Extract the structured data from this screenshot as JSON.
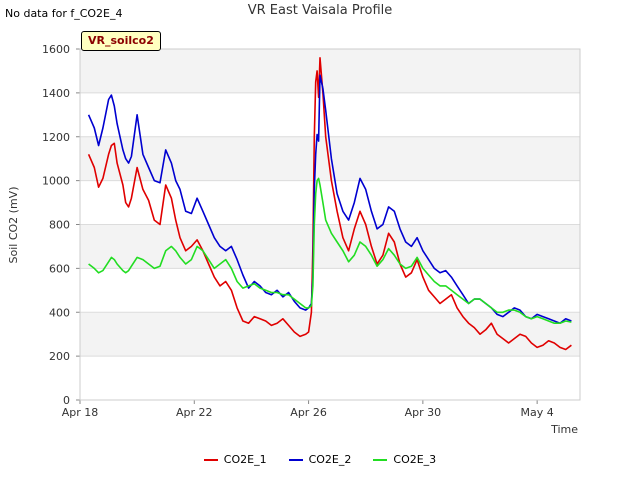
{
  "header": {
    "nodata_text": "No data for f_CO2E_4",
    "title": "VR East Vaisala Profile",
    "site_label": "VR_soilco2"
  },
  "colors": {
    "plot_background": "#f3f3f3",
    "grid": "#dcdcdc",
    "CO2E_1": "#e00000",
    "CO2E_2": "#0000d0",
    "CO2E_3": "#22dd22"
  },
  "chart_data": {
    "type": "line",
    "title": "VR East Vaisala Profile",
    "xlabel": "Time",
    "ylabel": "Soil CO2 (mV)",
    "ylim": [
      0,
      1600
    ],
    "xlim_days": [
      0,
      17.5
    ],
    "y_ticks": [
      0,
      200,
      400,
      600,
      800,
      1000,
      1200,
      1400,
      1600
    ],
    "x_ticks": [
      {
        "day": 0,
        "label": "Apr 18"
      },
      {
        "day": 4,
        "label": "Apr 22"
      },
      {
        "day": 8,
        "label": "Apr 26"
      },
      {
        "day": 12,
        "label": "Apr 30"
      },
      {
        "day": 16,
        "label": "May 4"
      }
    ],
    "legend_position": "bottom",
    "series": [
      {
        "name": "CO2E_1",
        "color": "#e00000",
        "x": [
          0.3,
          0.5,
          0.65,
          0.8,
          1.0,
          1.1,
          1.2,
          1.3,
          1.5,
          1.6,
          1.7,
          1.8,
          2.0,
          2.2,
          2.4,
          2.6,
          2.8,
          3.0,
          3.2,
          3.35,
          3.5,
          3.7,
          3.9,
          4.1,
          4.3,
          4.5,
          4.7,
          4.9,
          5.1,
          5.3,
          5.5,
          5.7,
          5.9,
          6.1,
          6.3,
          6.5,
          6.7,
          6.9,
          7.1,
          7.3,
          7.5,
          7.7,
          7.9,
          8.0,
          8.1,
          8.15,
          8.2,
          8.25,
          8.3,
          8.35,
          8.4,
          8.5,
          8.6,
          8.8,
          9.0,
          9.2,
          9.4,
          9.6,
          9.8,
          10.0,
          10.2,
          10.4,
          10.6,
          10.8,
          11.0,
          11.2,
          11.4,
          11.6,
          11.8,
          12.0,
          12.2,
          12.4,
          12.6,
          12.8,
          13.0,
          13.2,
          13.4,
          13.6,
          13.8,
          14.0,
          14.2,
          14.4,
          14.6,
          14.8,
          15.0,
          15.2,
          15.4,
          15.6,
          15.8,
          16.0,
          16.2,
          16.4,
          16.6,
          16.8,
          17.0,
          17.2
        ],
        "values": [
          1120,
          1060,
          970,
          1010,
          1120,
          1160,
          1170,
          1080,
          980,
          900,
          880,
          920,
          1060,
          960,
          910,
          820,
          800,
          980,
          920,
          820,
          740,
          680,
          700,
          730,
          680,
          620,
          560,
          520,
          540,
          500,
          420,
          360,
          350,
          380,
          370,
          360,
          340,
          350,
          370,
          340,
          310,
          290,
          300,
          310,
          400,
          700,
          1200,
          1450,
          1500,
          1380,
          1560,
          1400,
          1200,
          1000,
          860,
          740,
          680,
          780,
          860,
          800,
          700,
          620,
          660,
          760,
          720,
          620,
          560,
          580,
          640,
          560,
          500,
          470,
          440,
          460,
          480,
          420,
          380,
          350,
          330,
          300,
          320,
          350,
          300,
          280,
          260,
          280,
          300,
          290,
          260,
          240,
          250,
          270,
          260,
          240,
          230,
          250
        ]
      },
      {
        "name": "CO2E_2",
        "color": "#0000d0",
        "x": [
          0.3,
          0.5,
          0.65,
          0.8,
          1.0,
          1.1,
          1.2,
          1.3,
          1.5,
          1.6,
          1.7,
          1.8,
          2.0,
          2.2,
          2.4,
          2.6,
          2.8,
          3.0,
          3.2,
          3.35,
          3.5,
          3.7,
          3.9,
          4.1,
          4.3,
          4.5,
          4.7,
          4.9,
          5.1,
          5.3,
          5.5,
          5.7,
          5.9,
          6.1,
          6.3,
          6.5,
          6.7,
          6.9,
          7.1,
          7.3,
          7.5,
          7.7,
          7.9,
          8.0,
          8.1,
          8.15,
          8.2,
          8.25,
          8.3,
          8.35,
          8.4,
          8.5,
          8.6,
          8.8,
          9.0,
          9.2,
          9.4,
          9.6,
          9.8,
          10.0,
          10.2,
          10.4,
          10.6,
          10.8,
          11.0,
          11.2,
          11.4,
          11.6,
          11.8,
          12.0,
          12.2,
          12.4,
          12.6,
          12.8,
          13.0,
          13.2,
          13.4,
          13.6,
          13.8,
          14.0,
          14.2,
          14.4,
          14.6,
          14.8,
          15.0,
          15.2,
          15.4,
          15.6,
          15.8,
          16.0,
          16.2,
          16.4,
          16.6,
          16.8,
          17.0,
          17.2
        ],
        "values": [
          1300,
          1240,
          1160,
          1240,
          1370,
          1390,
          1340,
          1260,
          1140,
          1100,
          1080,
          1110,
          1300,
          1120,
          1060,
          1000,
          990,
          1140,
          1080,
          1000,
          960,
          860,
          850,
          920,
          860,
          800,
          740,
          700,
          680,
          700,
          640,
          570,
          510,
          540,
          520,
          490,
          480,
          500,
          470,
          490,
          450,
          420,
          410,
          420,
          440,
          560,
          960,
          1120,
          1210,
          1180,
          1480,
          1420,
          1320,
          1100,
          940,
          860,
          820,
          900,
          1010,
          960,
          860,
          780,
          800,
          880,
          860,
          780,
          720,
          700,
          740,
          680,
          640,
          600,
          580,
          590,
          560,
          520,
          480,
          440,
          460,
          460,
          440,
          420,
          390,
          380,
          400,
          420,
          410,
          380,
          370,
          390,
          380,
          370,
          360,
          350,
          370,
          360
        ]
      },
      {
        "name": "CO2E_3",
        "color": "#22dd22",
        "x": [
          0.3,
          0.5,
          0.65,
          0.8,
          1.0,
          1.1,
          1.2,
          1.3,
          1.5,
          1.6,
          1.7,
          1.8,
          2.0,
          2.2,
          2.4,
          2.6,
          2.8,
          3.0,
          3.2,
          3.35,
          3.5,
          3.7,
          3.9,
          4.1,
          4.3,
          4.5,
          4.7,
          4.9,
          5.1,
          5.3,
          5.5,
          5.7,
          5.9,
          6.1,
          6.3,
          6.5,
          6.7,
          6.9,
          7.1,
          7.3,
          7.5,
          7.7,
          7.9,
          8.0,
          8.1,
          8.15,
          8.2,
          8.25,
          8.3,
          8.35,
          8.4,
          8.5,
          8.6,
          8.8,
          9.0,
          9.2,
          9.4,
          9.6,
          9.8,
          10.0,
          10.2,
          10.4,
          10.6,
          10.8,
          11.0,
          11.2,
          11.4,
          11.6,
          11.8,
          12.0,
          12.2,
          12.4,
          12.6,
          12.8,
          13.0,
          13.2,
          13.4,
          13.6,
          13.8,
          14.0,
          14.2,
          14.4,
          14.6,
          14.8,
          15.0,
          15.2,
          15.4,
          15.6,
          15.8,
          16.0,
          16.2,
          16.4,
          16.6,
          16.8,
          17.0,
          17.2
        ],
        "values": [
          620,
          600,
          580,
          590,
          630,
          650,
          640,
          620,
          590,
          580,
          590,
          610,
          650,
          640,
          620,
          600,
          610,
          680,
          700,
          680,
          650,
          620,
          640,
          700,
          680,
          640,
          600,
          620,
          640,
          600,
          540,
          510,
          520,
          530,
          510,
          500,
          490,
          490,
          480,
          480,
          460,
          440,
          420,
          420,
          430,
          520,
          800,
          940,
          1000,
          1010,
          980,
          900,
          820,
          760,
          720,
          680,
          630,
          660,
          720,
          700,
          660,
          610,
          640,
          690,
          660,
          620,
          600,
          610,
          650,
          600,
          570,
          540,
          520,
          520,
          500,
          480,
          460,
          440,
          460,
          460,
          440,
          420,
          400,
          400,
          410,
          410,
          400,
          380,
          370,
          380,
          370,
          360,
          350,
          350,
          360,
          355
        ]
      }
    ]
  }
}
